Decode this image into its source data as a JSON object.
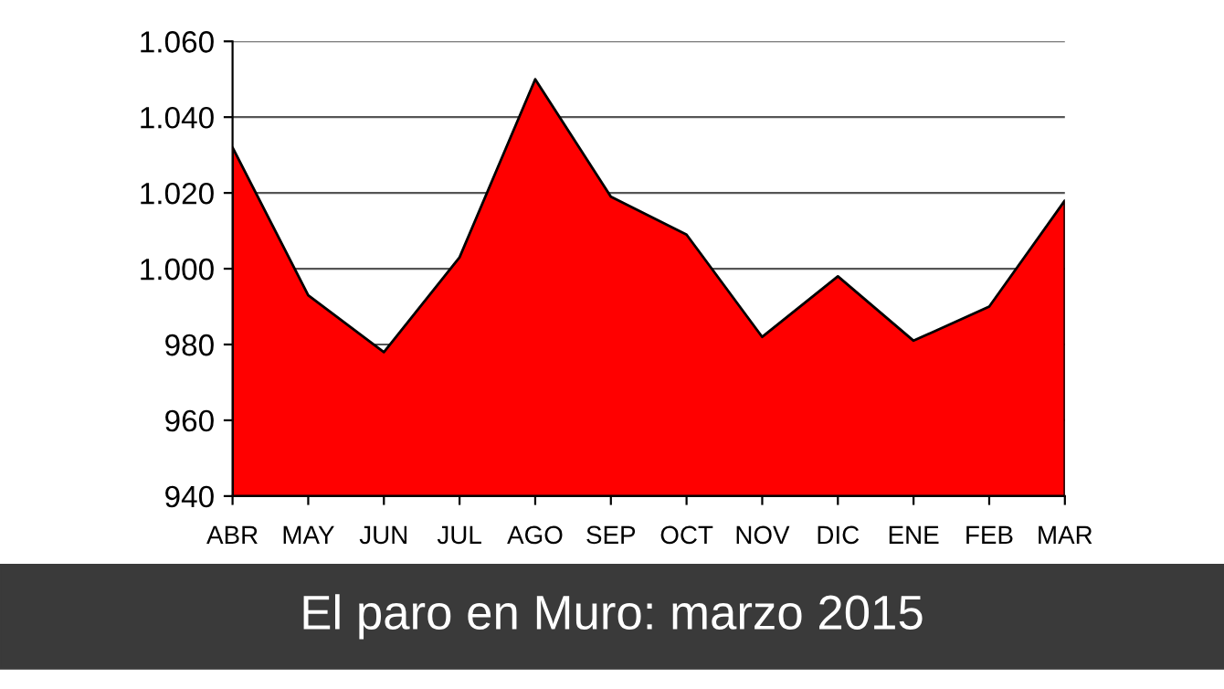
{
  "chart_data": {
    "type": "area",
    "title": "El paro en Muro: marzo 2015",
    "categories": [
      "ABR",
      "MAY",
      "JUN",
      "JUL",
      "AGO",
      "SEP",
      "OCT",
      "NOV",
      "DIC",
      "ENE",
      "FEB",
      "MAR"
    ],
    "values": [
      1032,
      993,
      978,
      1003,
      1050,
      1019,
      1009,
      982,
      998,
      981,
      990,
      1018
    ],
    "color": "#ff0000",
    "ylim": [
      940,
      1060
    ],
    "yticks": [
      {
        "value": 940,
        "label": "940"
      },
      {
        "value": 960,
        "label": "960"
      },
      {
        "value": 980,
        "label": "980"
      },
      {
        "value": 1000,
        "label": "1.000"
      },
      {
        "value": 1020,
        "label": "1.020"
      },
      {
        "value": 1040,
        "label": "1.040"
      },
      {
        "value": 1060,
        "label": "1.060"
      }
    ],
    "grid": "y"
  }
}
